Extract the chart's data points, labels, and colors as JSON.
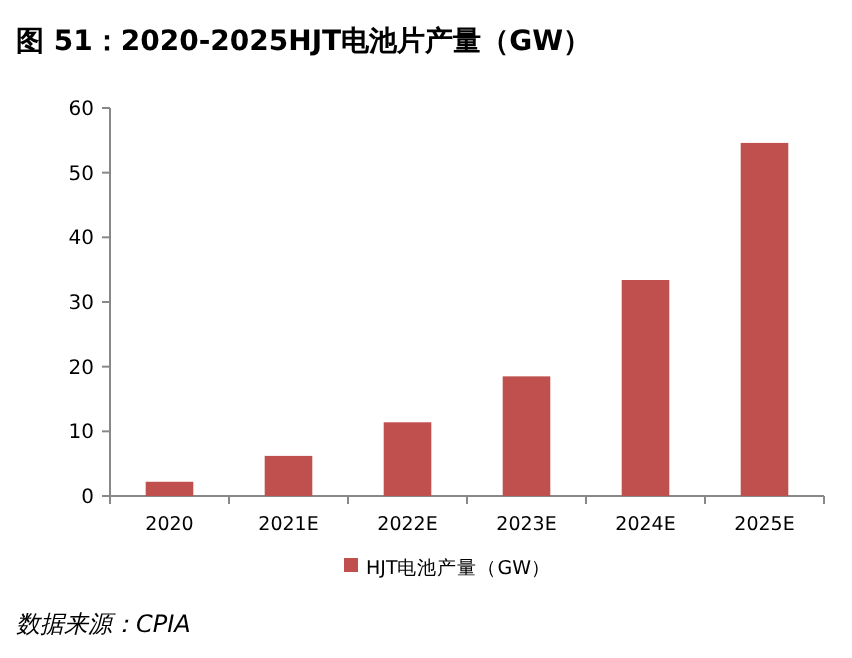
{
  "chart_data": {
    "type": "bar",
    "title": "图 51：2020-2025HJT电池片产量（GW）",
    "categories": [
      "2020",
      "2021E",
      "2022E",
      "2023E",
      "2024E",
      "2025E"
    ],
    "series": [
      {
        "name": "HJT电池产量（GW）",
        "color": "#c0504d",
        "values": [
          2.2,
          6.2,
          11.4,
          18.5,
          33.4,
          54.6
        ]
      }
    ],
    "ylim": [
      0,
      60
    ],
    "yticks": [
      0,
      10,
      20,
      30,
      40,
      50,
      60
    ],
    "legend": "bottom",
    "grid": false,
    "annotations": [
      "数据来源：CPIA"
    ]
  }
}
